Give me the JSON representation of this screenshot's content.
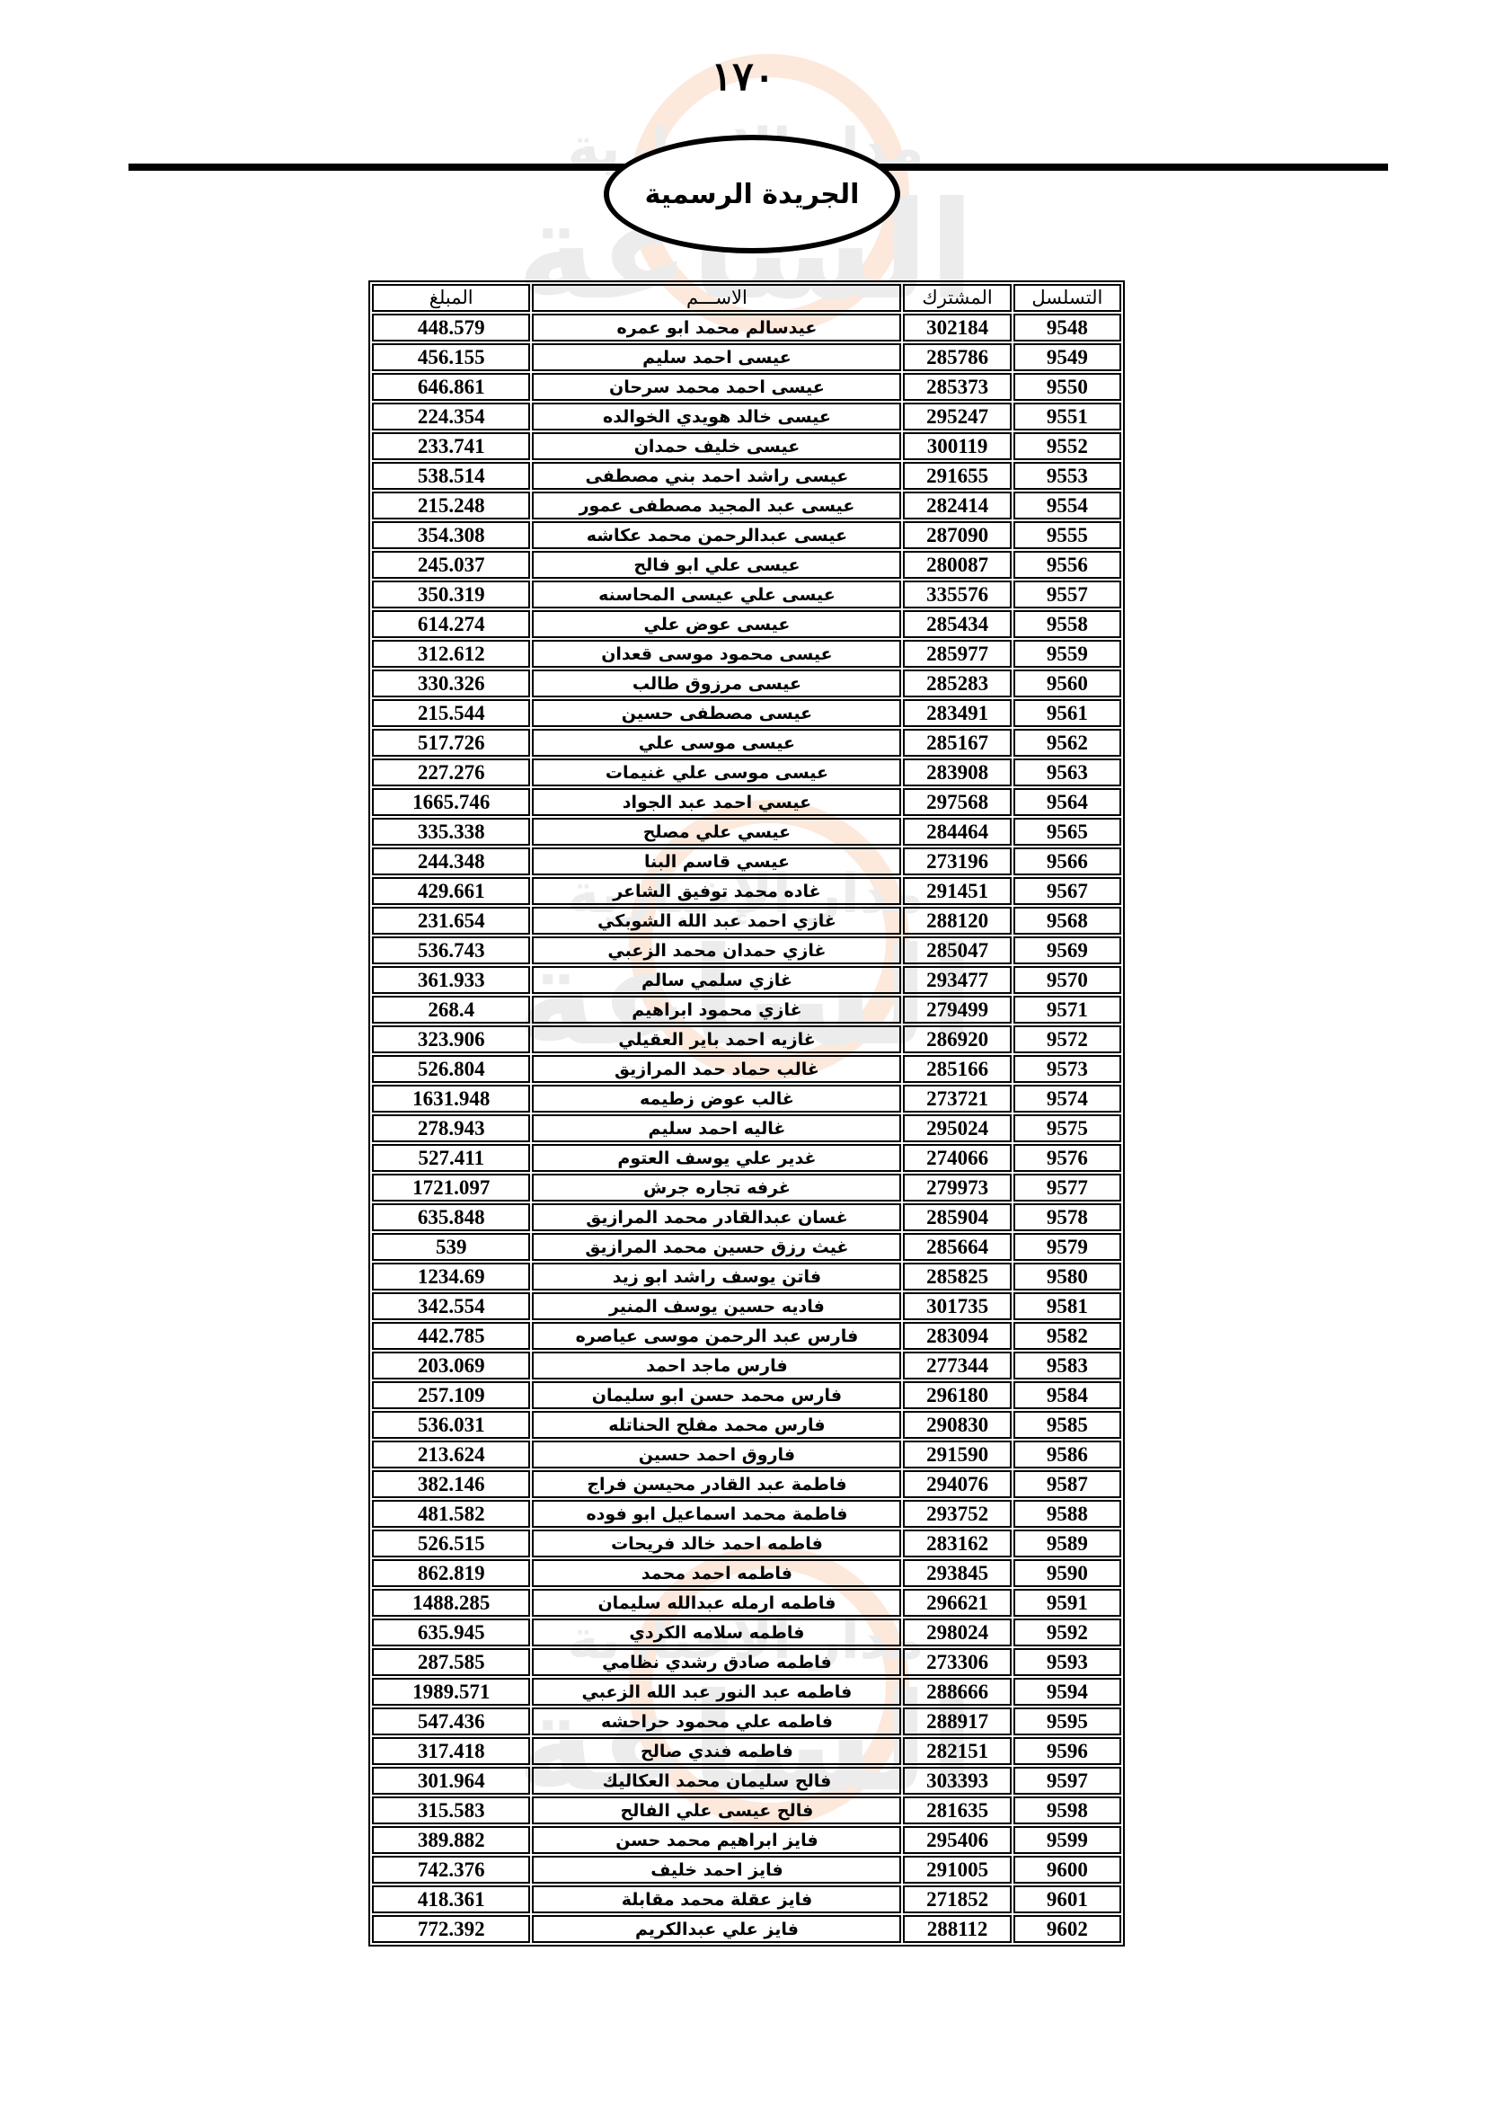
{
  "header": {
    "page_number": "١٧٠",
    "title": "الجريدة الرسمية"
  },
  "watermark": {
    "line1": "مدار الإخبارية",
    "line2": "الساعة"
  },
  "table": {
    "columns": [
      "التسلسل",
      "المشترك",
      "الاســـم",
      "المبلغ"
    ],
    "rows": [
      [
        "9548",
        "302184",
        "عيدسالم محمد ابو عمره",
        "448.579"
      ],
      [
        "9549",
        "285786",
        "عيسى احمد سليم",
        "456.155"
      ],
      [
        "9550",
        "285373",
        "عيسى احمد محمد سرحان",
        "646.861"
      ],
      [
        "9551",
        "295247",
        "عيسى خالد هويدي الخوالده",
        "224.354"
      ],
      [
        "9552",
        "300119",
        "عيسى خليف  حمدان",
        "233.741"
      ],
      [
        "9553",
        "291655",
        "عيسى راشد احمد بني مصطفى",
        "538.514"
      ],
      [
        "9554",
        "282414",
        "عيسى عبد المجيد مصطفى عمور",
        "215.248"
      ],
      [
        "9555",
        "287090",
        "عيسى عبدالرحمن محمد عكاشه",
        "354.308"
      ],
      [
        "9556",
        "280087",
        "عيسى علي ابو فالح",
        "245.037"
      ],
      [
        "9557",
        "335576",
        "عيسى علي عيسى المحاسنه",
        "350.319"
      ],
      [
        "9558",
        "285434",
        "عيسى عوض علي",
        "614.274"
      ],
      [
        "9559",
        "285977",
        "عيسى محمود موسى قعدان",
        "312.612"
      ],
      [
        "9560",
        "285283",
        "عيسى مرزوق طالب",
        "330.326"
      ],
      [
        "9561",
        "283491",
        "عيسى مصطفى حسين",
        "215.544"
      ],
      [
        "9562",
        "285167",
        "عيسى موسى علي",
        "517.726"
      ],
      [
        "9563",
        "283908",
        "عيسى موسى علي غنيمات",
        "227.276"
      ],
      [
        "9564",
        "297568",
        "عيسي احمد عبد الجواد",
        "1665.746"
      ],
      [
        "9565",
        "284464",
        "عيسي علي مصلح",
        "335.338"
      ],
      [
        "9566",
        "273196",
        "عيسي قاسم البنا",
        "244.348"
      ],
      [
        "9567",
        "291451",
        "غاده محمد توفيق الشاعر",
        "429.661"
      ],
      [
        "9568",
        "288120",
        "غازي احمد عبد الله الشوبكي",
        "231.654"
      ],
      [
        "9569",
        "285047",
        "غازي حمدان محمد الزعبي",
        "536.743"
      ],
      [
        "9570",
        "293477",
        "غازي سلمي سالم",
        "361.933"
      ],
      [
        "9571",
        "279499",
        "غازي محمود ابراهيم",
        "268.4"
      ],
      [
        "9572",
        "286920",
        "غازيه احمد باير العقيلي",
        "323.906"
      ],
      [
        "9573",
        "285166",
        "غالب حماد حمد المرازيق",
        "526.804"
      ],
      [
        "9574",
        "273721",
        "غالب عوض زطيمه",
        "1631.948"
      ],
      [
        "9575",
        "295024",
        "غاليه احمد سليم",
        "278.943"
      ],
      [
        "9576",
        "274066",
        "غدير علي يوسف العتوم",
        "527.411"
      ],
      [
        "9577",
        "279973",
        "غرفه تجاره جرش",
        "1721.097"
      ],
      [
        "9578",
        "285904",
        "غسان عبدالقادر محمد المرازيق",
        "635.848"
      ],
      [
        "9579",
        "285664",
        "غيث رزق حسين محمد المرازيق",
        "539"
      ],
      [
        "9580",
        "285825",
        "فاتن يوسف راشد ابو زيد",
        "1234.69"
      ],
      [
        "9581",
        "301735",
        "فاديه حسين يوسف المنير",
        "342.554"
      ],
      [
        "9582",
        "283094",
        "فارس عبد الرحمن موسى عياصره",
        "442.785"
      ],
      [
        "9583",
        "277344",
        "فارس ماجد احمد",
        "203.069"
      ],
      [
        "9584",
        "296180",
        "فارس محمد حسن ابو سليمان",
        "257.109"
      ],
      [
        "9585",
        "290830",
        "فارس محمد مفلح الحناتله",
        "536.031"
      ],
      [
        "9586",
        "291590",
        "فاروق احمد حسين",
        "213.624"
      ],
      [
        "9587",
        "294076",
        "فاطمة عبد القادر محيسن فراج",
        "382.146"
      ],
      [
        "9588",
        "293752",
        "فاطمة محمد اسماعيل ابو فوده",
        "481.582"
      ],
      [
        "9589",
        "283162",
        "فاطمه احمد خالد فريحات",
        "526.515"
      ],
      [
        "9590",
        "293845",
        "فاطمه احمد محمد",
        "862.819"
      ],
      [
        "9591",
        "296621",
        "فاطمه ارمله عبدالله سليمان",
        "1488.285"
      ],
      [
        "9592",
        "298024",
        "فاطمه سلامه الكردي",
        "635.945"
      ],
      [
        "9593",
        "273306",
        "فاطمه صادق رشدي نظامي",
        "287.585"
      ],
      [
        "9594",
        "288666",
        "فاطمه عبد النور عبد الله الزعبي",
        "1989.571"
      ],
      [
        "9595",
        "288917",
        "فاطمه علي محمود حراحشه",
        "547.436"
      ],
      [
        "9596",
        "282151",
        "فاطمه فندي صالح",
        "317.418"
      ],
      [
        "9597",
        "303393",
        "فالح سليمان محمد العكاليك",
        "301.964"
      ],
      [
        "9598",
        "281635",
        "فالح عيسى علي الفالح",
        "315.583"
      ],
      [
        "9599",
        "295406",
        "فايز ابراهيم محمد حسن",
        "389.882"
      ],
      [
        "9600",
        "291005",
        "فايز احمد خليف",
        "742.376"
      ],
      [
        "9601",
        "271852",
        "فايز عقلة محمد مقابلة",
        "418.361"
      ],
      [
        "9602",
        "288112",
        "فايز علي عبدالكريم",
        "772.392"
      ]
    ]
  }
}
